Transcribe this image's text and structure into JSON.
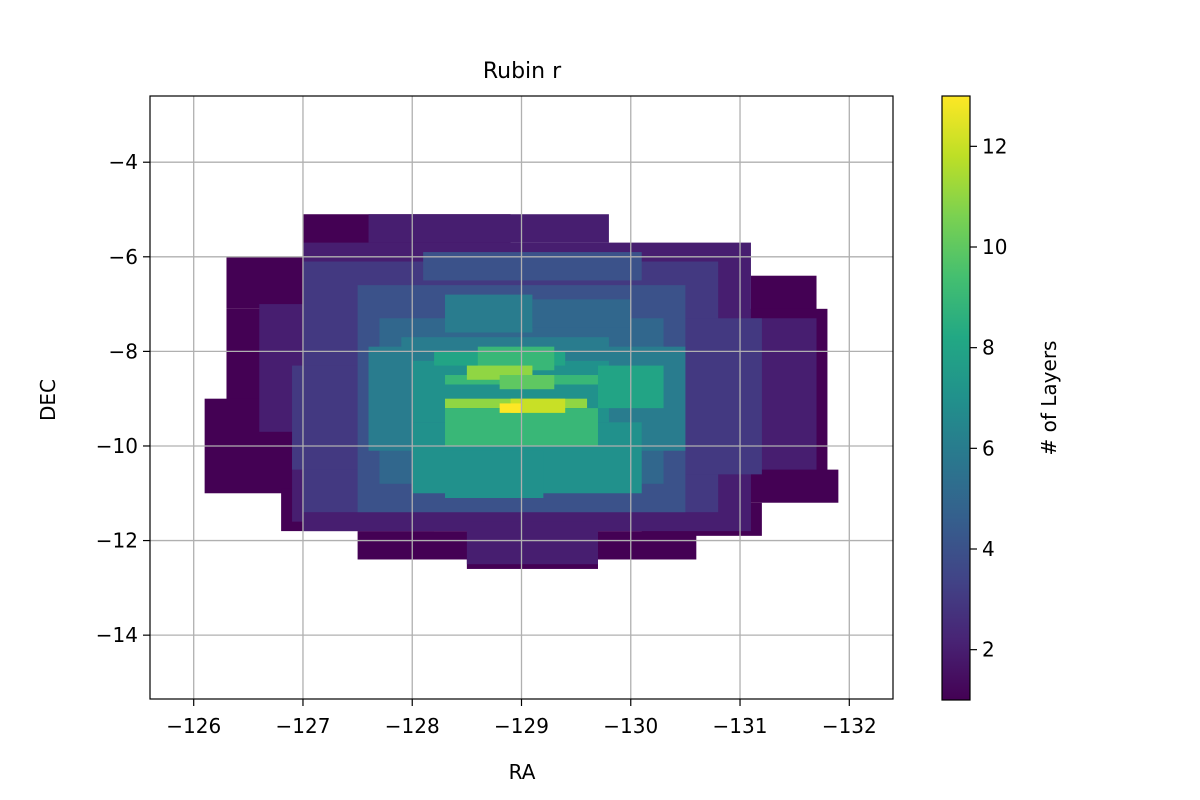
{
  "chart_data": {
    "type": "heatmap",
    "title": "Rubin r",
    "xlabel": "RA",
    "ylabel": "DEC",
    "xlim": [
      -125.6,
      -132.4
    ],
    "ylim": [
      -15.35,
      -2.6
    ],
    "xticks": [
      -126,
      -127,
      -128,
      -129,
      -130,
      -131,
      -132
    ],
    "xtick_labels": [
      "−126",
      "−127",
      "−128",
      "−129",
      "−130",
      "−131",
      "−132"
    ],
    "yticks": [
      -4,
      -6,
      -8,
      -10,
      -12,
      -14
    ],
    "ytick_labels": [
      "−4",
      "−6",
      "−8",
      "−10",
      "−12",
      "−14"
    ],
    "grid": true,
    "colormap": "viridis",
    "colorbar": {
      "label": "# of Layers",
      "range": [
        1,
        13
      ],
      "ticks": [
        2,
        4,
        6,
        8,
        10,
        12
      ],
      "tick_labels": [
        "2",
        "4",
        "6",
        "8",
        "10",
        "12"
      ]
    },
    "regions": [
      {
        "ra": [
          -127.0,
          -128.9
        ],
        "dec": [
          -5.1,
          -5.8
        ],
        "value": 1
      },
      {
        "ra": [
          -127.6,
          -129.8
        ],
        "dec": [
          -5.1,
          -5.7
        ],
        "value": 2
      },
      {
        "ra": [
          -129.8,
          -131.0
        ],
        "dec": [
          -5.8,
          -6.6
        ],
        "value": 1
      },
      {
        "ra": [
          -126.3,
          -127.0
        ],
        "dec": [
          -6.0,
          -7.1
        ],
        "value": 1
      },
      {
        "ra": [
          -131.1,
          -131.7
        ],
        "dec": [
          -6.4,
          -7.2
        ],
        "value": 1
      },
      {
        "ra": [
          -126.3,
          -131.8
        ],
        "dec": [
          -7.1,
          -10.9
        ],
        "value": 1
      },
      {
        "ra": [
          -126.1,
          -127.6
        ],
        "dec": [
          -9.0,
          -11.0
        ],
        "value": 1
      },
      {
        "ra": [
          -130.5,
          -131.9
        ],
        "dec": [
          -10.5,
          -11.2
        ],
        "value": 1
      },
      {
        "ra": [
          -126.8,
          -128.2
        ],
        "dec": [
          -10.9,
          -11.8
        ],
        "value": 1
      },
      {
        "ra": [
          -130.1,
          -131.2
        ],
        "dec": [
          -11.2,
          -11.9
        ],
        "value": 1
      },
      {
        "ra": [
          -127.5,
          -130.6
        ],
        "dec": [
          -11.8,
          -12.4
        ],
        "value": 1
      },
      {
        "ra": [
          -128.5,
          -129.7
        ],
        "dec": [
          -12.0,
          -12.6
        ],
        "value": 1
      },
      {
        "ra": [
          -127.0,
          -131.1
        ],
        "dec": [
          -5.7,
          -11.8
        ],
        "value": 2
      },
      {
        "ra": [
          -126.6,
          -127.4
        ],
        "dec": [
          -7.0,
          -9.7
        ],
        "value": 2
      },
      {
        "ra": [
          -130.8,
          -131.7
        ],
        "dec": [
          -7.3,
          -10.5
        ],
        "value": 2
      },
      {
        "ra": [
          -126.9,
          -128.0
        ],
        "dec": [
          -9.9,
          -11.6
        ],
        "value": 2
      },
      {
        "ra": [
          -128.5,
          -129.7
        ],
        "dec": [
          -11.6,
          -12.5
        ],
        "value": 2
      },
      {
        "ra": [
          -127.0,
          -130.8
        ],
        "dec": [
          -6.1,
          -11.4
        ],
        "value": 3
      },
      {
        "ra": [
          -126.9,
          -127.9
        ],
        "dec": [
          -8.3,
          -10.5
        ],
        "value": 3
      },
      {
        "ra": [
          -130.1,
          -131.2
        ],
        "dec": [
          -7.3,
          -10.6
        ],
        "value": 3
      },
      {
        "ra": [
          -127.5,
          -130.5
        ],
        "dec": [
          -6.6,
          -11.4
        ],
        "value": 4
      },
      {
        "ra": [
          -128.1,
          -130.1
        ],
        "dec": [
          -5.9,
          -6.5
        ],
        "value": 4
      },
      {
        "ra": [
          -127.7,
          -130.3
        ],
        "dec": [
          -7.3,
          -10.8
        ],
        "value": 5
      },
      {
        "ra": [
          -128.3,
          -129.1
        ],
        "dec": [
          -6.8,
          -7.6
        ],
        "value": 6
      },
      {
        "ra": [
          -129.1,
          -130.0
        ],
        "dec": [
          -6.9,
          -7.5
        ],
        "value": 5
      },
      {
        "ra": [
          -127.6,
          -130.5
        ],
        "dec": [
          -7.9,
          -10.1
        ],
        "value": 6
      },
      {
        "ra": [
          -127.9,
          -129.8
        ],
        "dec": [
          -7.7,
          -8.0
        ],
        "value": 6
      },
      {
        "ra": [
          -128.0,
          -129.8
        ],
        "dec": [
          -8.2,
          -9.5
        ],
        "value": 7
      },
      {
        "ra": [
          -128.0,
          -130.1
        ],
        "dec": [
          -9.5,
          -11.0
        ],
        "value": 7
      },
      {
        "ra": [
          -128.3,
          -129.2
        ],
        "dec": [
          -10.1,
          -11.1
        ],
        "value": 7
      },
      {
        "ra": [
          -129.7,
          -130.3
        ],
        "dec": [
          -8.3,
          -9.2
        ],
        "value": 8
      },
      {
        "ra": [
          -128.2,
          -129.4
        ],
        "dec": [
          -8.0,
          -8.3
        ],
        "value": 8
      },
      {
        "ra": [
          -128.6,
          -129.3
        ],
        "dec": [
          -7.9,
          -8.4
        ],
        "value": 9
      },
      {
        "ra": [
          -128.3,
          -129.7
        ],
        "dec": [
          -8.5,
          -8.7
        ],
        "value": 9
      },
      {
        "ra": [
          -128.5,
          -129.1
        ],
        "dec": [
          -8.3,
          -8.6
        ],
        "value": 11
      },
      {
        "ra": [
          -128.8,
          -129.3
        ],
        "dec": [
          -8.5,
          -8.8
        ],
        "value": 10
      },
      {
        "ra": [
          -128.3,
          -129.6
        ],
        "dec": [
          -9.0,
          -9.2
        ],
        "value": 11
      },
      {
        "ra": [
          -128.3,
          -129.7
        ],
        "dec": [
          -9.2,
          -10.0
        ],
        "value": 9
      },
      {
        "ra": [
          -128.9,
          -129.4
        ],
        "dec": [
          -9.0,
          -9.3
        ],
        "value": 12
      },
      {
        "ra": [
          -128.8,
          -129.0
        ],
        "dec": [
          -9.1,
          -9.3
        ],
        "value": 13
      }
    ]
  }
}
